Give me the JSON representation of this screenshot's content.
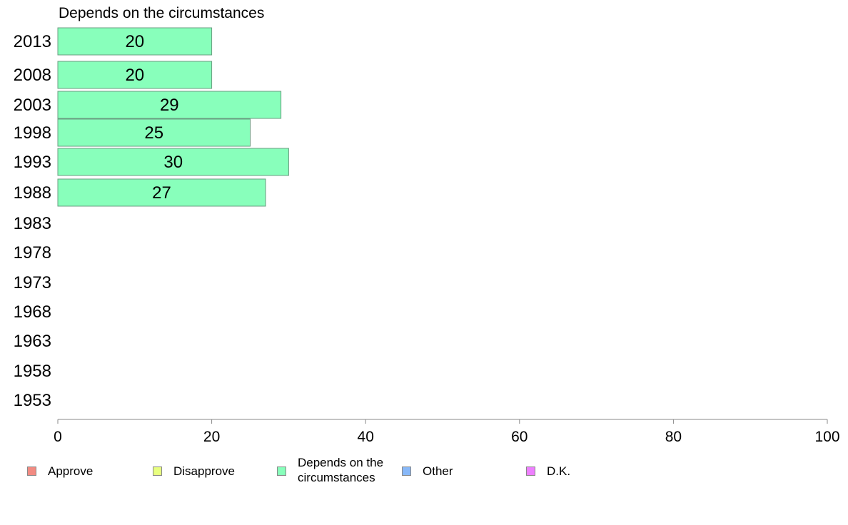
{
  "chart_data": {
    "type": "bar",
    "orientation": "horizontal",
    "title": "Depends on the circumstances",
    "categories": [
      "2013",
      "2008",
      "2003",
      "1998",
      "1993",
      "1988",
      "1983",
      "1978",
      "1973",
      "1968",
      "1963",
      "1958",
      "1953"
    ],
    "series": [
      {
        "name": "Depends on the circumstances",
        "color": "#88ffbb",
        "values": [
          20,
          20,
          29,
          25,
          30,
          27,
          null,
          null,
          null,
          null,
          null,
          null,
          null
        ]
      }
    ],
    "xlim": [
      0,
      100
    ],
    "xticks": [
      "0",
      "20",
      "40",
      "60",
      "80",
      "100"
    ],
    "grid": false,
    "legend_position": "bottom",
    "legend": [
      {
        "label": "Approve",
        "color": "#f28b82"
      },
      {
        "label": "Disapprove",
        "color": "#e8ff80"
      },
      {
        "label": "Depends on the\ncircumstances",
        "color": "#88ffbb"
      },
      {
        "label": "Other",
        "color": "#88b8f8"
      },
      {
        "label": "D.K.",
        "color": "#ee80ff"
      }
    ]
  }
}
